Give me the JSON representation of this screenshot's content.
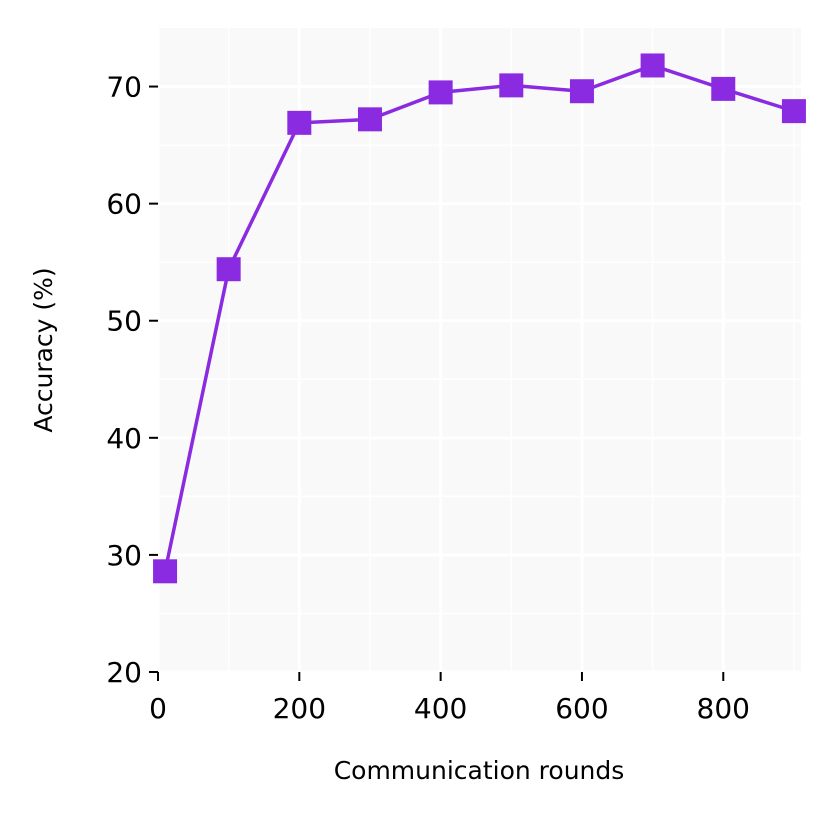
{
  "chart_data": {
    "type": "line",
    "title": "",
    "xlabel": "Communication rounds",
    "ylabel": "Accuracy (%)",
    "xlim": [
      0,
      910
    ],
    "ylim": [
      20,
      75
    ],
    "xticks": [
      0,
      200,
      400,
      600,
      800
    ],
    "yticks": [
      20,
      30,
      40,
      50,
      60,
      70
    ],
    "grid": true,
    "series": [
      {
        "color": "#8a2be2",
        "marker": "square",
        "x": [
          10,
          100,
          200,
          300,
          400,
          500,
          600,
          700,
          800,
          900
        ],
        "y": [
          28.6,
          54.4,
          66.9,
          67.2,
          69.5,
          70.1,
          69.6,
          71.8,
          69.8,
          67.9
        ]
      }
    ],
    "colors": {
      "plot_background": "#f9f9f9",
      "grid": "#ffffff",
      "axis": "#000000"
    }
  }
}
